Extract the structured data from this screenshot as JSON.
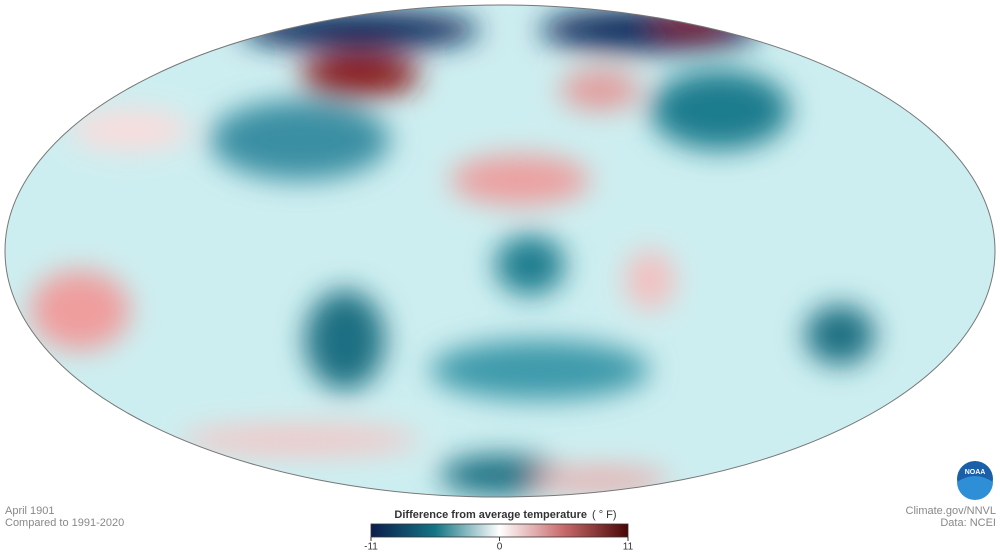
{
  "map": {
    "date": "April 1901",
    "baseline": "Compared to 1991-2020",
    "legend": {
      "title": "Difference from average temperature",
      "unit": "( ° F)",
      "range": [
        -11,
        11
      ],
      "ticks": [
        -11,
        0,
        11
      ]
    },
    "source": "Climate.gov/NNVL",
    "data_credit": "Data: NCEI",
    "logo": "NOAA"
  }
}
